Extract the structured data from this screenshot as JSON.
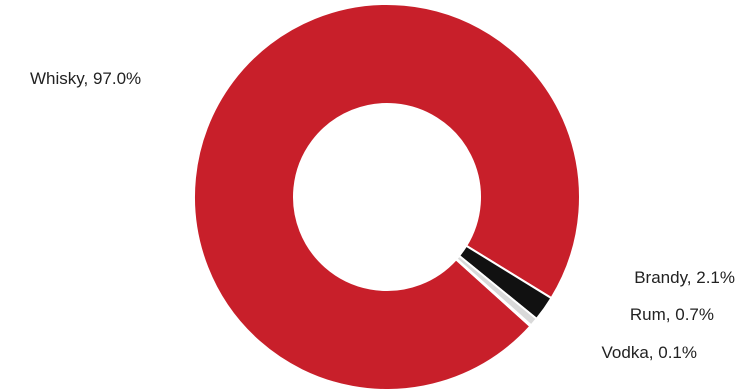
{
  "chart_data": {
    "type": "pie",
    "variant": "donut",
    "title": "",
    "categories": [
      "Whisky",
      "Brandy",
      "Rum",
      "Vodka"
    ],
    "values": [
      97.0,
      2.1,
      0.7,
      0.1
    ],
    "labels": [
      "Whisky, 97.0%",
      "Brandy, 2.1%",
      "Rum, 0.7%",
      "Vodka, 0.1%"
    ],
    "colors": [
      "#c81f2a",
      "#111111",
      "#d9d9d9",
      "#ffffff"
    ],
    "legend": "none"
  }
}
